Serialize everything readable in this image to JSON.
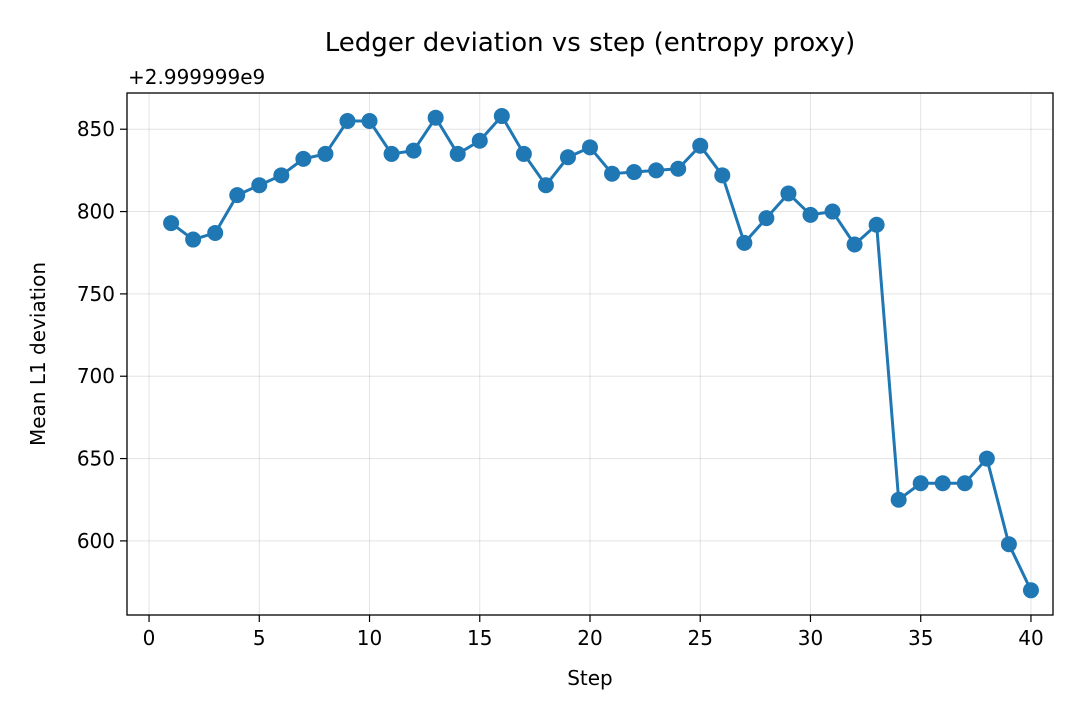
{
  "chart_data": {
    "type": "line",
    "title": "Ledger deviation vs step (entropy proxy)",
    "offset_text": "+2.999999e9",
    "xlabel": "Step",
    "ylabel": "Mean L1 deviation",
    "xlim": [
      -1,
      41
    ],
    "ylim": [
      555,
      872
    ],
    "xticks": [
      0,
      5,
      10,
      15,
      20,
      25,
      30,
      35,
      40
    ],
    "xtick_labels": [
      "0",
      "5",
      "10",
      "15",
      "20",
      "25",
      "30",
      "35",
      "40"
    ],
    "yticks": [
      600,
      650,
      700,
      750,
      800,
      850
    ],
    "ytick_labels": [
      "600",
      "650",
      "700",
      "750",
      "800",
      "850"
    ],
    "grid": true,
    "color": "#1f77b4",
    "marker": "circle",
    "x": [
      1,
      2,
      3,
      4,
      5,
      6,
      7,
      8,
      9,
      10,
      11,
      12,
      13,
      14,
      15,
      16,
      17,
      18,
      19,
      20,
      21,
      22,
      23,
      24,
      25,
      26,
      27,
      28,
      29,
      30,
      31,
      32,
      33,
      34,
      35,
      36,
      37,
      38,
      39,
      40
    ],
    "y": [
      793,
      783,
      787,
      810,
      816,
      822,
      832,
      835,
      855,
      855,
      835,
      837,
      857,
      835,
      843,
      858,
      835,
      816,
      833,
      839,
      823,
      824,
      825,
      826,
      840,
      822,
      781,
      796,
      811,
      798,
      800,
      780,
      792,
      625,
      635,
      635,
      635,
      650,
      598,
      570
    ]
  }
}
